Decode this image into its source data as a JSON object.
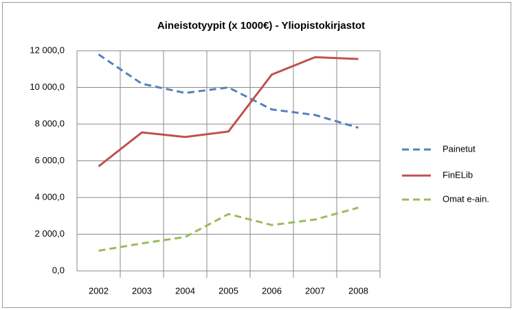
{
  "chart_data": {
    "type": "line",
    "title": "Aineistotyypit (x 1000€) - Yliopistokirjastot",
    "categories": [
      "2002",
      "2003",
      "2004",
      "2005",
      "2006",
      "2007",
      "2008"
    ],
    "series": [
      {
        "name": "Painetut",
        "color": "#4f81bd",
        "dash": true,
        "values": [
          11800,
          10200,
          9700,
          10000,
          8800,
          8500,
          7800
        ]
      },
      {
        "name": "FinELib",
        "color": "#c0504d",
        "dash": false,
        "values": [
          5700,
          7550,
          7300,
          7600,
          10700,
          11650,
          11550
        ]
      },
      {
        "name": "Omat e-ain.",
        "color": "#9bbb59",
        "dash": true,
        "values": [
          1100,
          1500,
          1850,
          3100,
          2500,
          2800,
          3450
        ]
      }
    ],
    "ylim": [
      0,
      12000
    ],
    "yticks": [
      {
        "value": 0,
        "label": "0,0"
      },
      {
        "value": 2000,
        "label": "2 000,0"
      },
      {
        "value": 4000,
        "label": "4 000,0"
      },
      {
        "value": 6000,
        "label": "6 000,0"
      },
      {
        "value": 8000,
        "label": "8 000,0"
      },
      {
        "value": 10000,
        "label": "10 000,0"
      },
      {
        "value": 12000,
        "label": "12 000,0"
      }
    ],
    "grid": true,
    "legend": "right"
  }
}
